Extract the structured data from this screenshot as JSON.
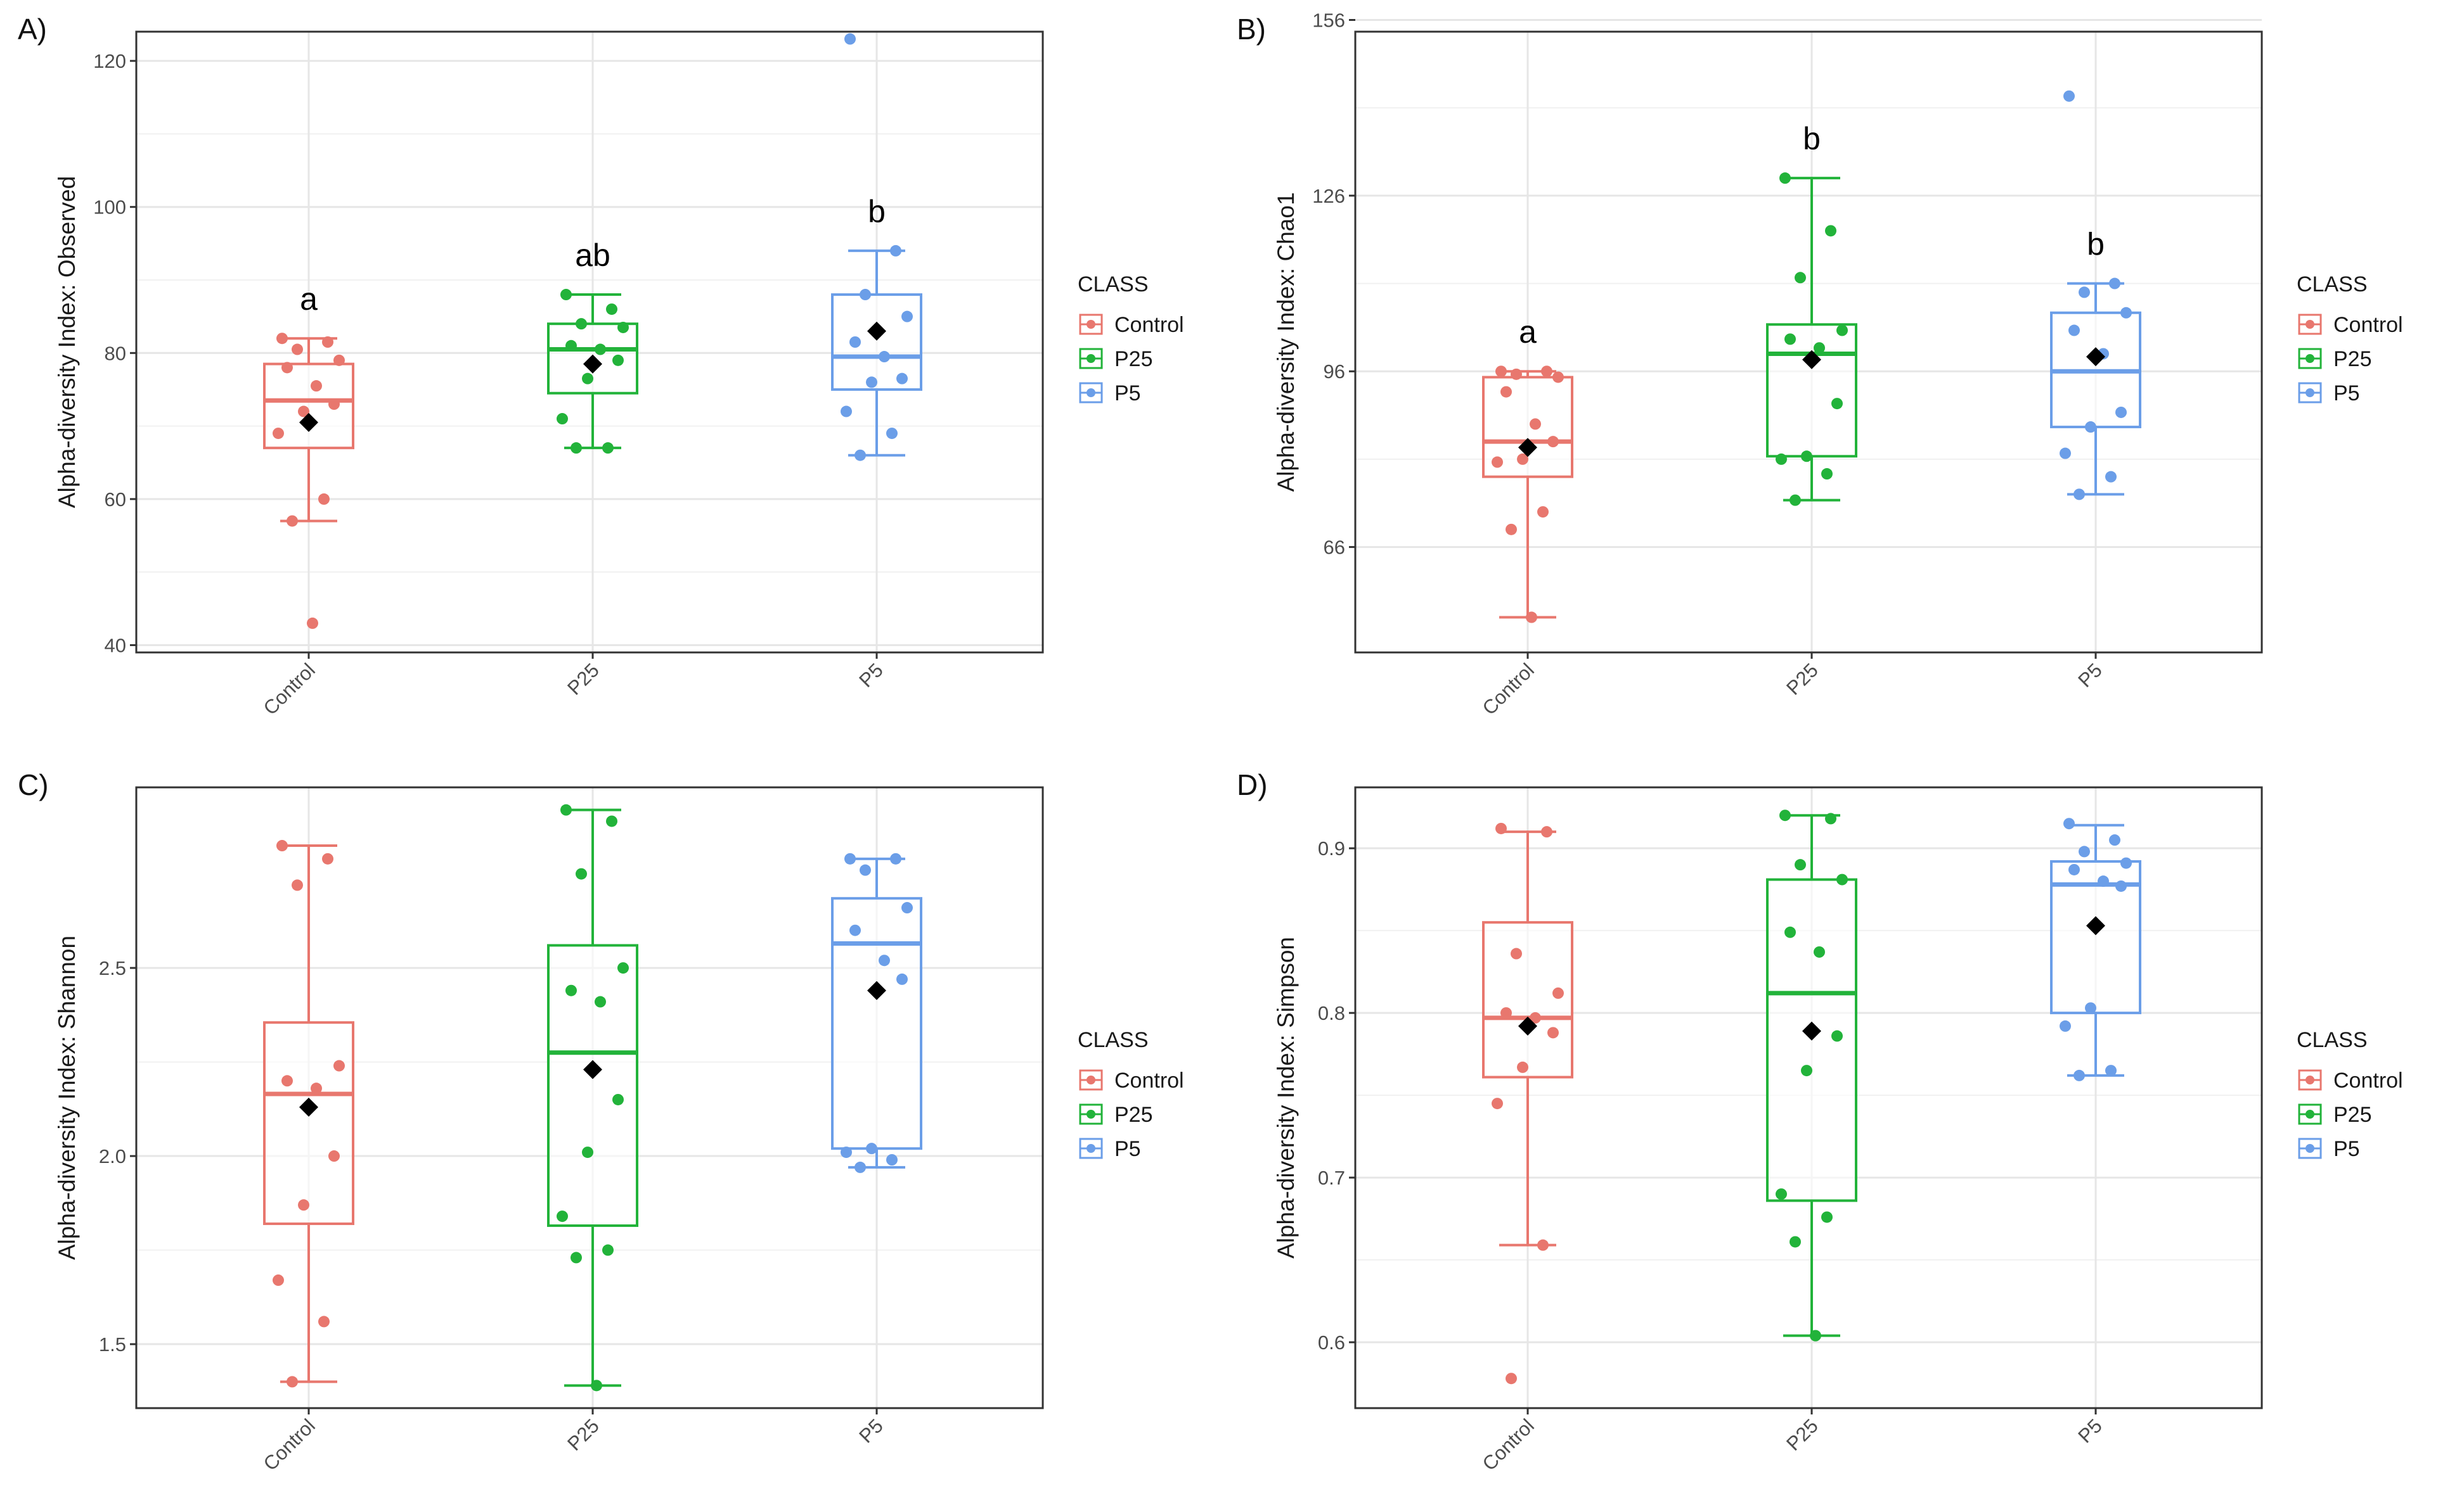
{
  "colors": {
    "Control": "#e8776e",
    "P25": "#22b33a",
    "P5": "#6b9ee8",
    "mean": "#000000",
    "grid": "#e6e6e6"
  },
  "legend": {
    "title": "CLASS",
    "items": [
      "Control",
      "P25",
      "P5"
    ]
  },
  "chart_data": [
    {
      "type": "box",
      "panel_label": "A)",
      "ylabel": "Alpha-diversity Index: Observed",
      "categories": [
        "Control",
        "P25",
        "P5"
      ],
      "ylim": [
        39,
        124
      ],
      "yticks": [
        40,
        60,
        80,
        100,
        120
      ],
      "ytick_labels": [
        "40",
        "60",
        "80",
        "100",
        "120"
      ],
      "boxes": [
        {
          "class": "Control",
          "whisker_low": 57,
          "q1": 67,
          "median": 73.5,
          "q3": 78.5,
          "whisker_high": 82,
          "mean": 70.5,
          "letter": "a",
          "points": [
            82,
            81.5,
            80.5,
            79,
            78,
            75.5,
            73,
            72,
            69,
            60,
            57,
            43
          ]
        },
        {
          "class": "P25",
          "whisker_low": 67,
          "q1": 74.5,
          "median": 80.5,
          "q3": 84,
          "whisker_high": 88,
          "mean": 78.5,
          "letter": "ab",
          "points": [
            88,
            86,
            84,
            83.5,
            81,
            80.5,
            79,
            76.5,
            71,
            67,
            67
          ]
        },
        {
          "class": "P5",
          "whisker_low": 66,
          "q1": 75,
          "median": 79.5,
          "q3": 88,
          "whisker_high": 94,
          "mean": 83,
          "letter": "b",
          "points": [
            123,
            94,
            88,
            85,
            81.5,
            79.5,
            76.5,
            76,
            72,
            69,
            66
          ]
        }
      ]
    },
    {
      "type": "box",
      "panel_label": "B)",
      "ylabel": "Alpha-diversity Index: Chao1",
      "categories": [
        "Control",
        "P25",
        "P5"
      ],
      "ylim": [
        48,
        154
      ],
      "yticks": [
        66,
        96,
        126,
        156
      ],
      "ytick_labels": [
        "66",
        "96",
        "126",
        "156"
      ],
      "boxes": [
        {
          "class": "Control",
          "whisker_low": 54,
          "q1": 78,
          "median": 84,
          "q3": 95,
          "whisker_high": 96,
          "mean": 83,
          "letter": "a",
          "points": [
            96,
            96,
            95.5,
            95,
            92.5,
            87,
            84,
            81,
            80.5,
            72,
            69,
            54
          ]
        },
        {
          "class": "P25",
          "whisker_low": 74,
          "q1": 81.5,
          "median": 99,
          "q3": 104,
          "whisker_high": 129,
          "mean": 98,
          "letter": "b",
          "points": [
            129,
            120,
            112,
            103,
            101.5,
            100,
            90.5,
            81.5,
            81,
            78.5,
            74
          ]
        },
        {
          "class": "P5",
          "whisker_low": 75,
          "q1": 86.5,
          "median": 96,
          "q3": 106,
          "whisker_high": 111,
          "mean": 98.5,
          "letter": "b",
          "points": [
            143,
            111,
            109.5,
            106,
            103,
            99,
            89,
            86.5,
            82,
            78,
            75
          ]
        }
      ]
    },
    {
      "type": "box",
      "panel_label": "C)",
      "ylabel": "Alpha-diversity Index: Shannon",
      "categories": [
        "Control",
        "P25",
        "P5"
      ],
      "ylim": [
        1.33,
        2.98
      ],
      "yticks": [
        1.5,
        2.0,
        2.5
      ],
      "ytick_labels": [
        "1.5",
        "2.0",
        "2.5"
      ],
      "boxes": [
        {
          "class": "Control",
          "whisker_low": 1.4,
          "q1": 1.82,
          "median": 2.165,
          "q3": 2.355,
          "whisker_high": 2.825,
          "mean": 2.13,
          "letter": "",
          "points": [
            2.825,
            2.79,
            2.72,
            2.24,
            2.2,
            2.18,
            2.0,
            1.87,
            1.67,
            1.56,
            1.4
          ]
        },
        {
          "class": "P25",
          "whisker_low": 1.39,
          "q1": 1.815,
          "median": 2.275,
          "q3": 2.56,
          "whisker_high": 2.92,
          "mean": 2.23,
          "letter": "",
          "points": [
            2.92,
            2.89,
            2.75,
            2.5,
            2.44,
            2.41,
            2.15,
            2.01,
            1.84,
            1.75,
            1.73,
            1.39
          ]
        },
        {
          "class": "P5",
          "whisker_low": 1.97,
          "q1": 2.02,
          "median": 2.565,
          "q3": 2.685,
          "whisker_high": 2.79,
          "mean": 2.44,
          "letter": "",
          "points": [
            2.79,
            2.79,
            2.76,
            2.66,
            2.6,
            2.52,
            2.47,
            2.02,
            2.01,
            1.99,
            1.97
          ]
        }
      ]
    },
    {
      "type": "box",
      "panel_label": "D)",
      "ylabel": "Alpha-diversity Index: Simpson",
      "categories": [
        "Control",
        "P25",
        "P5"
      ],
      "ylim": [
        0.56,
        0.937
      ],
      "yticks": [
        0.6,
        0.7,
        0.8,
        0.9
      ],
      "ytick_labels": [
        "0.6",
        "0.7",
        "0.8",
        "0.9"
      ],
      "boxes": [
        {
          "class": "Control",
          "whisker_low": 0.659,
          "q1": 0.761,
          "median": 0.797,
          "q3": 0.855,
          "whisker_high": 0.91,
          "mean": 0.792,
          "letter": "",
          "points": [
            0.912,
            0.91,
            0.836,
            0.812,
            0.8,
            0.797,
            0.788,
            0.767,
            0.745,
            0.659,
            0.578
          ]
        },
        {
          "class": "P25",
          "whisker_low": 0.604,
          "q1": 0.686,
          "median": 0.812,
          "q3": 0.881,
          "whisker_high": 0.92,
          "mean": 0.789,
          "letter": "",
          "points": [
            0.92,
            0.918,
            0.89,
            0.881,
            0.849,
            0.837,
            0.786,
            0.765,
            0.69,
            0.676,
            0.661,
            0.604
          ]
        },
        {
          "class": "P5",
          "whisker_low": 0.762,
          "q1": 0.8,
          "median": 0.878,
          "q3": 0.892,
          "whisker_high": 0.914,
          "mean": 0.853,
          "letter": "",
          "points": [
            0.915,
            0.905,
            0.898,
            0.891,
            0.887,
            0.88,
            0.877,
            0.803,
            0.792,
            0.765,
            0.762
          ]
        }
      ]
    }
  ]
}
